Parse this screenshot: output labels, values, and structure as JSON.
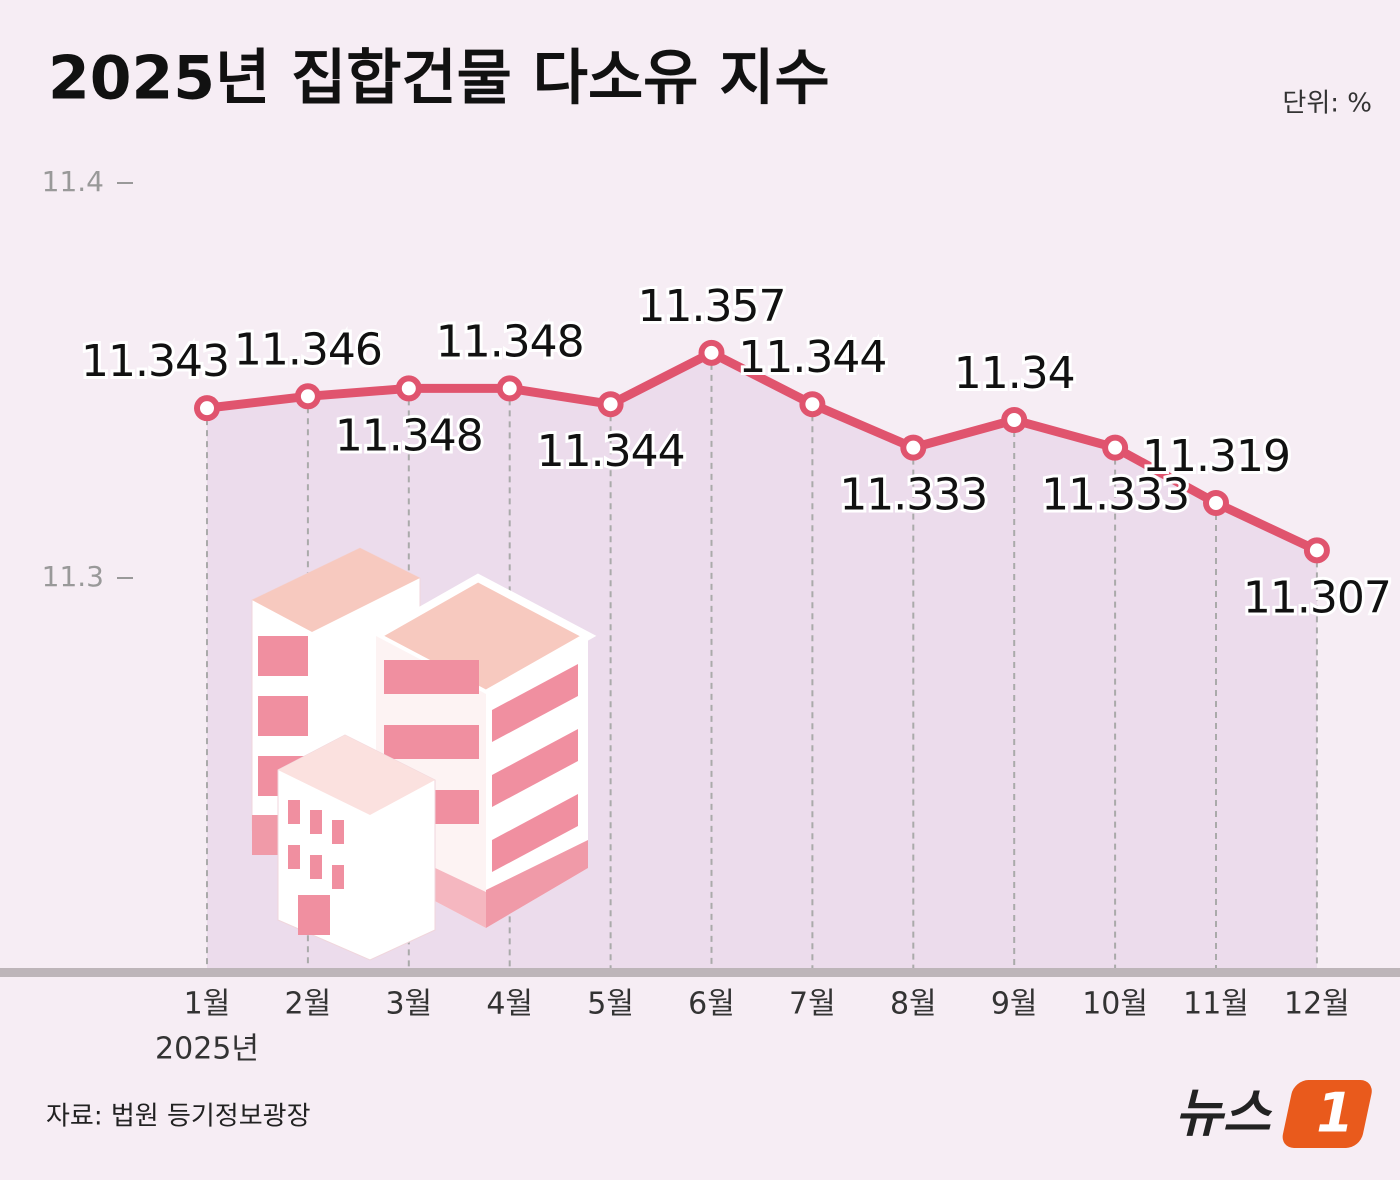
{
  "chart_data": {
    "type": "line",
    "title": "2025년 집합건물 다소유 지수",
    "unit": "단위: %",
    "categories": [
      "1월",
      "2월",
      "3월",
      "4월",
      "5월",
      "6월",
      "7월",
      "8월",
      "9월",
      "10월",
      "11월",
      "12월"
    ],
    "x_sublabel": "2025년",
    "series": [
      {
        "name": "다소유 지수",
        "color": "#e0546e",
        "values": [
          11.343,
          11.346,
          11.348,
          11.348,
          11.344,
          11.357,
          11.344,
          11.333,
          11.34,
          11.333,
          11.319,
          11.307
        ]
      }
    ],
    "ylim": [
      11.2,
      11.4
    ],
    "yticks": [
      11.3,
      11.4
    ],
    "area_color": "#ecdcec",
    "source": "자료: 법원 등기정보광장",
    "logo": "뉴스",
    "logo_badge": "1"
  }
}
